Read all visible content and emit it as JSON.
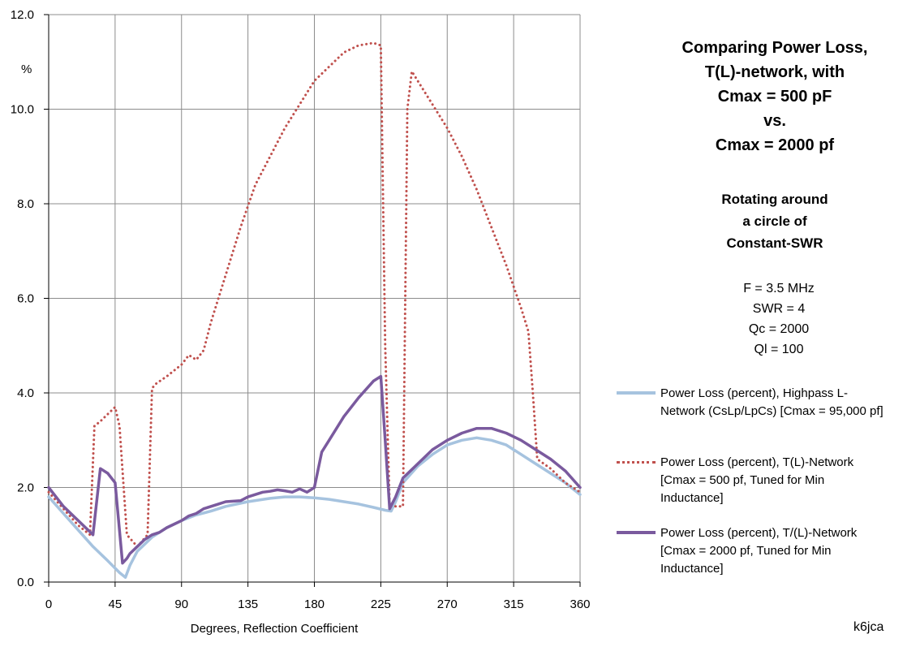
{
  "chart_data": {
    "type": "line",
    "title": "Comparing Power Loss, T(L)-network, with Cmax = 500 pF vs. Cmax = 2000 pf",
    "title_lines": [
      "Comparing Power Loss,",
      "T(L)-network, with",
      "Cmax = 500 pF",
      "vs.",
      "Cmax  = 2000 pf"
    ],
    "subtitle_lines": [
      "Rotating around",
      "a circle of",
      "Constant-SWR"
    ],
    "parameters": [
      "F = 3.5 MHz",
      "SWR = 4",
      "Qc = 2000",
      "Ql = 100"
    ],
    "xlabel": "Degrees, Reflection Coefficient",
    "ylabel": "%",
    "xlim": [
      0,
      360
    ],
    "ylim": [
      0,
      12
    ],
    "xticks": [
      0,
      45,
      90,
      135,
      180,
      225,
      270,
      315,
      360
    ],
    "yticks": [
      "0.0",
      "2.0",
      "4.0",
      "6.0",
      "8.0",
      "10.0",
      "12.0"
    ],
    "grid": true,
    "legend_position": "right",
    "credit": "k6jca",
    "series": [
      {
        "name": "Power Loss (percent), Highpass L-Network (CsLp/LpCs)  [Cmax = 95,000 pf]",
        "legend_lines": [
          "Power Loss (percent), Highpass L-",
          "Network (CsLp/LpCs)  [Cmax = 95,000 pf]"
        ],
        "color": "#a6c3df",
        "style": "solid",
        "x": [
          0,
          10,
          20,
          30,
          40,
          48,
          52,
          55,
          60,
          70,
          80,
          90,
          100,
          110,
          120,
          135,
          150,
          160,
          170,
          180,
          190,
          200,
          210,
          220,
          228,
          232,
          235,
          240,
          250,
          260,
          270,
          280,
          290,
          300,
          310,
          320,
          330,
          340,
          350,
          360
        ],
        "y": [
          1.8,
          1.45,
          1.1,
          0.75,
          0.45,
          0.2,
          0.1,
          0.35,
          0.65,
          0.95,
          1.15,
          1.3,
          1.42,
          1.5,
          1.6,
          1.7,
          1.77,
          1.8,
          1.8,
          1.78,
          1.75,
          1.7,
          1.65,
          1.58,
          1.52,
          1.5,
          1.7,
          2.1,
          2.45,
          2.7,
          2.9,
          3.0,
          3.05,
          3.0,
          2.9,
          2.7,
          2.5,
          2.3,
          2.1,
          1.85
        ]
      },
      {
        "name": "Power Loss (percent), T(L)-Network [Cmax = 500 pf, Tuned for Min Inductance]",
        "legend_lines": [
          "Power Loss (percent), T(L)-Network",
          "[Cmax = 500 pf, Tuned for Min",
          "Inductance]"
        ],
        "color": "#c0504d",
        "style": "dotted",
        "x": [
          0,
          10,
          20,
          28,
          31,
          35,
          40,
          45,
          48,
          53,
          60,
          67,
          70,
          73,
          80,
          90,
          95,
          100,
          105,
          110,
          120,
          130,
          140,
          150,
          160,
          170,
          180,
          190,
          200,
          210,
          220,
          225,
          228,
          231,
          235,
          240,
          243,
          246,
          250,
          260,
          270,
          280,
          290,
          300,
          310,
          320,
          325,
          328,
          331,
          340,
          350,
          360
        ],
        "y": [
          1.9,
          1.55,
          1.2,
          1.0,
          3.3,
          3.4,
          3.55,
          3.7,
          3.3,
          1.0,
          0.75,
          1.0,
          4.1,
          4.2,
          4.35,
          4.6,
          4.8,
          4.7,
          4.9,
          5.5,
          6.5,
          7.5,
          8.4,
          9.0,
          9.6,
          10.1,
          10.6,
          10.9,
          11.2,
          11.35,
          11.4,
          11.35,
          5.0,
          1.6,
          1.6,
          1.6,
          10.0,
          10.8,
          10.6,
          10.1,
          9.6,
          9.0,
          8.3,
          7.5,
          6.7,
          5.8,
          5.3,
          4.0,
          2.6,
          2.4,
          2.1,
          1.9
        ]
      },
      {
        "name": "Power Loss (percent), T/(L)-Network [Cmax = 2000 pf, Tuned for Min Inductance]",
        "legend_lines": [
          "Power Loss (percent), T/(L)-Network",
          "[Cmax = 2000 pf, Tuned for Min",
          "Inductance]"
        ],
        "color": "#7a5a9e",
        "style": "solid",
        "x": [
          0,
          10,
          20,
          30,
          35,
          40,
          45,
          50,
          53,
          55,
          60,
          65,
          70,
          75,
          80,
          90,
          95,
          100,
          105,
          110,
          115,
          120,
          130,
          135,
          140,
          145,
          150,
          155,
          160,
          165,
          170,
          175,
          180,
          185,
          190,
          200,
          210,
          220,
          225,
          228,
          231,
          235,
          240,
          250,
          260,
          270,
          280,
          290,
          300,
          310,
          320,
          330,
          340,
          350,
          360
        ],
        "y": [
          2.0,
          1.6,
          1.3,
          1.0,
          2.4,
          2.3,
          2.1,
          0.4,
          0.5,
          0.6,
          0.75,
          0.9,
          1.0,
          1.05,
          1.15,
          1.3,
          1.4,
          1.45,
          1.55,
          1.6,
          1.65,
          1.7,
          1.72,
          1.8,
          1.85,
          1.9,
          1.92,
          1.95,
          1.93,
          1.9,
          1.97,
          1.9,
          2.0,
          2.75,
          3.0,
          3.5,
          3.9,
          4.25,
          4.35,
          3.0,
          1.55,
          1.8,
          2.2,
          2.5,
          2.8,
          3.0,
          3.15,
          3.25,
          3.25,
          3.15,
          3.0,
          2.8,
          2.6,
          2.35,
          2.0
        ]
      }
    ]
  }
}
